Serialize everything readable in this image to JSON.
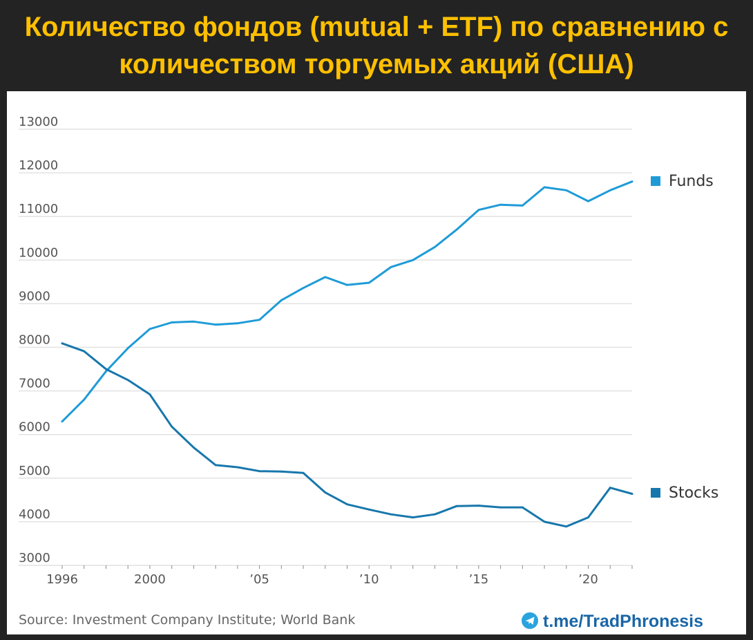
{
  "header": {
    "title_line1": "Количество фондов (mutual + ETF) по сравнению с",
    "title_line2": "количеством торгуемых акций (США)"
  },
  "colors": {
    "title": "#FFC000",
    "funds": "#1E9BD7",
    "stocks": "#1777AC",
    "grid": "#E2E2E2"
  },
  "chart_data": {
    "type": "line",
    "title": "Количество фондов (mutual + ETF) по сравнению с количеством торгуемых акций (США)",
    "xlabel": "",
    "ylabel": "",
    "xlim": [
      1996,
      2022
    ],
    "ylim": [
      3000,
      13000
    ],
    "y_ticks": [
      "13000",
      "12000",
      "11000",
      "10000",
      "9000",
      "8000",
      "7000",
      "6000",
      "5000",
      "4000",
      "3000"
    ],
    "x_ticks": [
      {
        "value": 1996,
        "label": "1996"
      },
      {
        "value": 2000,
        "label": "2000"
      },
      {
        "value": 2005,
        "label": "’05"
      },
      {
        "value": 2010,
        "label": "’10"
      },
      {
        "value": 2015,
        "label": "’15"
      },
      {
        "value": 2020,
        "label": "’20"
      }
    ],
    "x": [
      1996,
      1997,
      1998,
      1999,
      2000,
      2001,
      2002,
      2003,
      2004,
      2005,
      2006,
      2007,
      2008,
      2009,
      2010,
      2011,
      2012,
      2013,
      2014,
      2015,
      2016,
      2017,
      2018,
      2019,
      2020,
      2021,
      2022
    ],
    "series": [
      {
        "name": "Funds",
        "values": [
          6300,
          6800,
          7450,
          7980,
          8420,
          8570,
          8590,
          8520,
          8550,
          8630,
          9080,
          9360,
          9610,
          9430,
          9480,
          9840,
          10000,
          10300,
          10700,
          11150,
          11270,
          11250,
          11670,
          11600,
          11350,
          11600,
          11800
        ]
      },
      {
        "name": "Stocks",
        "values": [
          8090,
          7910,
          7500,
          7250,
          6920,
          6180,
          5700,
          5300,
          5250,
          5160,
          5150,
          5120,
          4670,
          4400,
          4280,
          4170,
          4100,
          4170,
          4360,
          4370,
          4330,
          4330,
          4000,
          3890,
          4100,
          4780,
          4640
        ]
      }
    ],
    "legend": [
      "Funds",
      "Stocks"
    ],
    "legend_position": "right, at end of each line",
    "grid": true,
    "source": "Source: Investment Company Institute; World Bank"
  },
  "watermark": {
    "icon": "telegram-icon",
    "text": "t.me/TradPhronesis"
  }
}
